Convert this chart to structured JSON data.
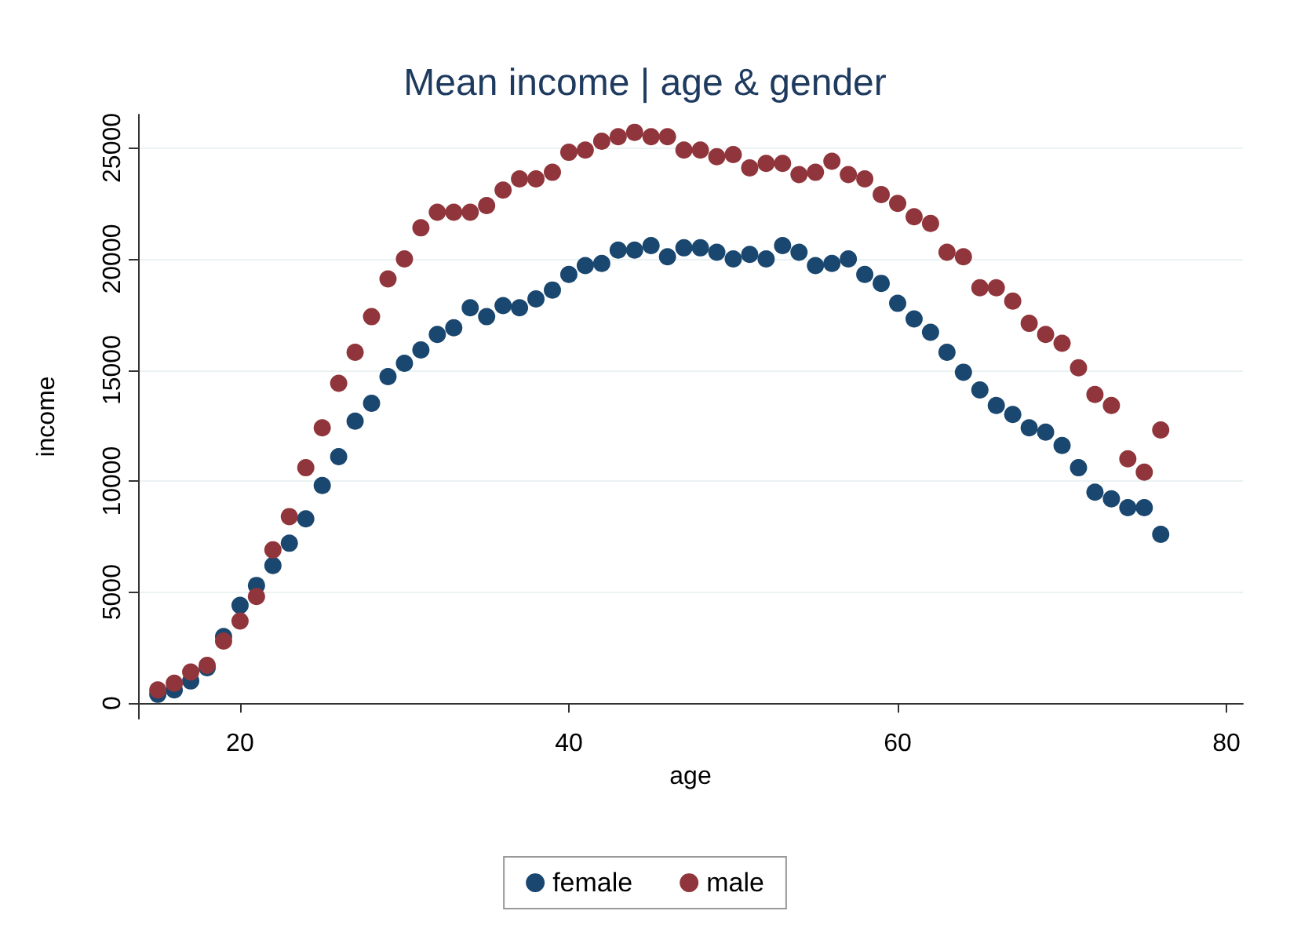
{
  "chart_data": {
    "type": "scatter",
    "title": "Mean income | age & gender",
    "xlabel": "age",
    "ylabel": "income",
    "x": [
      15,
      16,
      17,
      18,
      19,
      20,
      21,
      22,
      23,
      24,
      25,
      26,
      27,
      28,
      29,
      30,
      31,
      32,
      33,
      34,
      35,
      36,
      37,
      38,
      39,
      40,
      41,
      42,
      43,
      44,
      45,
      46,
      47,
      48,
      49,
      50,
      51,
      52,
      53,
      54,
      55,
      56,
      57,
      58,
      59,
      60,
      61,
      62,
      63,
      64,
      65,
      66,
      67,
      68,
      69,
      70,
      71,
      72,
      73,
      74,
      75,
      76
    ],
    "series": [
      {
        "name": "female",
        "color": "#1a476f",
        "values": [
          400,
          600,
          1000,
          1600,
          3000,
          4400,
          5300,
          6200,
          7200,
          8300,
          9800,
          11100,
          12700,
          13500,
          14700,
          15300,
          15900,
          16600,
          16900,
          17800,
          17400,
          17900,
          17800,
          18200,
          18600,
          19300,
          19700,
          19800,
          20400,
          20400,
          20600,
          20100,
          20500,
          20500,
          20300,
          20000,
          20200,
          20000,
          20600,
          20300,
          19700,
          19800,
          20000,
          19300,
          18900,
          18000,
          17300,
          16700,
          15800,
          14900,
          14100,
          13400,
          13000,
          12400,
          12200,
          11600,
          10600,
          9500,
          9200,
          8800,
          8800,
          7600
        ]
      },
      {
        "name": "male",
        "color": "#90353b",
        "values": [
          600,
          900,
          1400,
          1700,
          2800,
          3700,
          4800,
          6900,
          8400,
          10600,
          12400,
          14400,
          15800,
          17400,
          19100,
          20000,
          21400,
          22100,
          22100,
          22100,
          22400,
          23100,
          23600,
          23600,
          23900,
          24800,
          24900,
          25300,
          25500,
          25700,
          25500,
          25500,
          24900,
          24900,
          24600,
          24700,
          24100,
          24300,
          24300,
          23800,
          23900,
          24400,
          23800,
          23600,
          22900,
          22500,
          21900,
          21600,
          20300,
          20100,
          18700,
          18700,
          18100,
          17100,
          16600,
          16200,
          15100,
          13900,
          13400,
          11000,
          10400,
          12300
        ]
      }
    ],
    "xlim": [
      13.8,
      81
    ],
    "xticks": [
      20,
      40,
      60,
      80
    ],
    "ylim": [
      -700,
      26500
    ],
    "yticks": [
      0,
      5000,
      10000,
      15000,
      20000,
      25000
    ],
    "grid": "y",
    "legend": "bottom",
    "marker": "circle"
  }
}
